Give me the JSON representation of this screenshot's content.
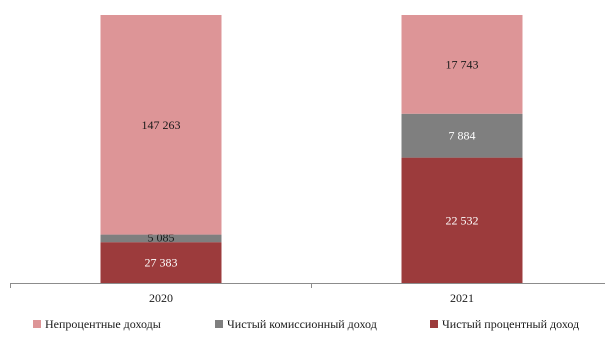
{
  "chart_data": {
    "type": "bar",
    "stacked": "percent",
    "categories": [
      "2020",
      "2021"
    ],
    "series": [
      {
        "name": "Чистый процентный доход",
        "values": [
          27383,
          22532
        ],
        "labels": [
          "27 383",
          "22 532"
        ],
        "color": "#9c3b3c"
      },
      {
        "name": "Чистый комиссионный доход",
        "values": [
          5085,
          7884
        ],
        "labels": [
          "5 085",
          "7 884"
        ],
        "color": "#7f7f7f"
      },
      {
        "name": "Непроцентные доходы",
        "values": [
          147263,
          17743
        ],
        "labels": [
          "147 263",
          "17 743"
        ],
        "color": "#dd9597"
      }
    ],
    "legend": {
      "position": "bottom",
      "order": [
        "Непроцентные доходы",
        "Чистый комиссионный доход",
        "Чистый процентный доход"
      ]
    },
    "title": "",
    "xlabel": "",
    "ylabel": "",
    "grid": false
  }
}
